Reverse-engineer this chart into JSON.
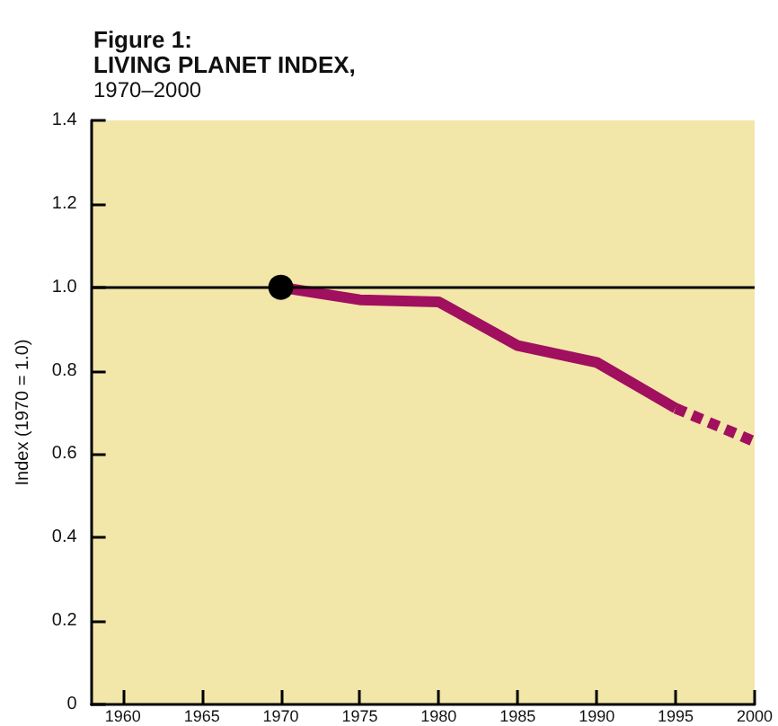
{
  "chart_data": {
    "type": "line",
    "title": "Figure 1:\nLIVING PLANET INDEX,",
    "subtitle": "1970–2000",
    "ylabel": "Index (1970 = 1.0)",
    "series": [
      {
        "color": "#a0105f",
        "x": [
          1970,
          1975,
          1980,
          1985,
          1990,
          1995
        ],
        "values": [
          1.0,
          0.97,
          0.965,
          0.86,
          0.82,
          0.71
        ],
        "line_style": "solid",
        "marker": "none"
      },
      {
        "color": "#a0105f",
        "x": [
          1995,
          2000
        ],
        "values": [
          0.71,
          0.63
        ],
        "line_style": "dashed",
        "marker": "none"
      },
      {
        "type": "scatter",
        "color": "#000000",
        "x": [
          1970
        ],
        "values": [
          1.0
        ],
        "marker": "circle"
      }
    ],
    "xlim": [
      1958,
      2000
    ],
    "xticks": [
      1960,
      1965,
      1970,
      1975,
      1980,
      1985,
      1990,
      1995,
      2000
    ],
    "ylim": [
      0,
      1.4
    ],
    "yticks": [
      0,
      0.2,
      0.4,
      0.6,
      0.8,
      {
        "value": 1,
        "label": "1.0"
      },
      1.2,
      1.4
    ],
    "ref_lines": [
      {
        "axis": "y",
        "value": 1.0,
        "color": "#000000",
        "line_style": "solid"
      }
    ],
    "grid": false
  }
}
